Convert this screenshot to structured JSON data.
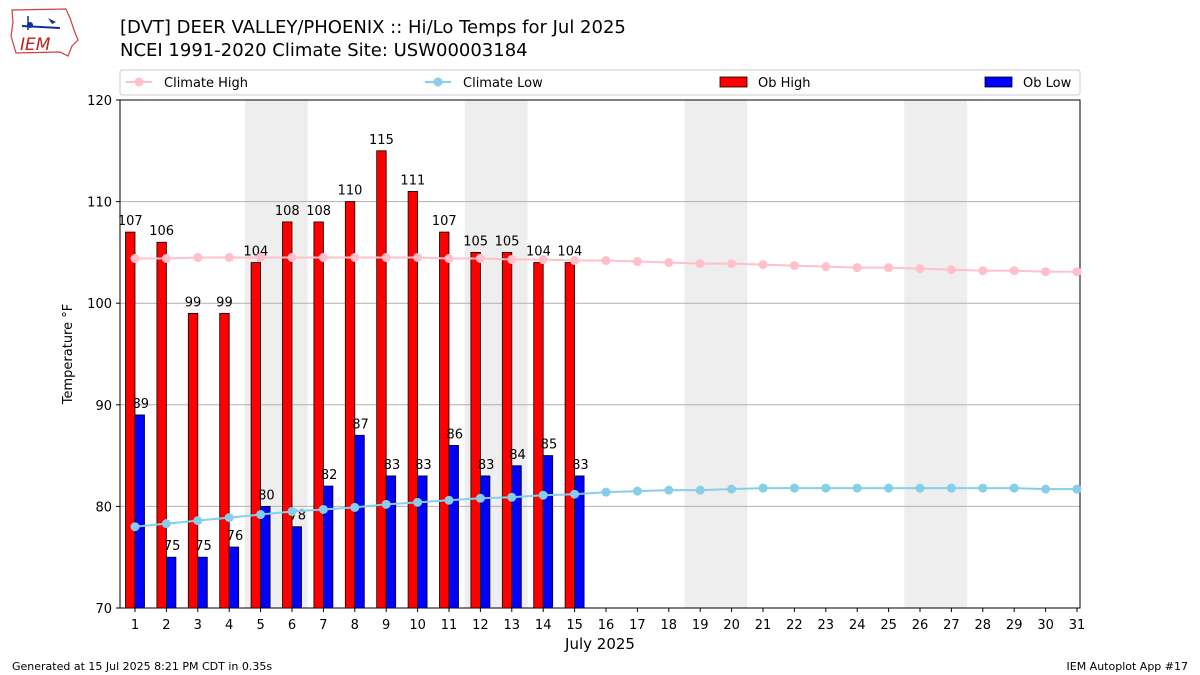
{
  "header": {
    "title": "[DVT] DEER VALLEY/PHOENIX :: Hi/Lo Temps for Jul 2025",
    "subtitle": "NCEI 1991-2020 Climate Site: USW00003184",
    "logo_text": "IEM"
  },
  "footer": {
    "left": "Generated at 15 Jul 2025 8:21 PM CDT in 0.35s",
    "right": "IEM Autoplot App #17"
  },
  "colors": {
    "climate_high": "#ffc0cb",
    "climate_low": "#87ceeb",
    "ob_high": "#ff0000",
    "ob_low": "#0000ff",
    "weekend_shade": "#eeeeee",
    "grid": "#b0b0b0"
  },
  "chart_data": {
    "type": "bar",
    "xlabel": "July 2025",
    "ylabel": "Temperature °F",
    "ylim": [
      70,
      120
    ],
    "yticks": [
      70,
      80,
      90,
      100,
      110,
      120
    ],
    "grid": "horizontal",
    "legend_placement": "top",
    "categories": [
      "1",
      "2",
      "3",
      "4",
      "5",
      "6",
      "7",
      "8",
      "9",
      "10",
      "11",
      "12",
      "13",
      "14",
      "15",
      "16",
      "17",
      "18",
      "19",
      "20",
      "21",
      "22",
      "23",
      "24",
      "25",
      "26",
      "27",
      "28",
      "29",
      "30",
      "31"
    ],
    "weekend_shading": [
      [
        5,
        6
      ],
      [
        12,
        13
      ],
      [
        19,
        20
      ],
      [
        26,
        27
      ]
    ],
    "series": [
      {
        "name": "Climate High",
        "kind": "line",
        "values": [
          104.4,
          104.4,
          104.5,
          104.5,
          104.5,
          104.5,
          104.5,
          104.5,
          104.5,
          104.5,
          104.4,
          104.4,
          104.3,
          104.3,
          104.2,
          104.2,
          104.1,
          104.0,
          103.9,
          103.9,
          103.8,
          103.7,
          103.6,
          103.5,
          103.5,
          103.4,
          103.3,
          103.2,
          103.2,
          103.1,
          103.1
        ]
      },
      {
        "name": "Climate Low",
        "kind": "line",
        "values": [
          78.0,
          78.3,
          78.6,
          78.9,
          79.2,
          79.5,
          79.7,
          79.9,
          80.2,
          80.4,
          80.6,
          80.8,
          80.9,
          81.1,
          81.2,
          81.4,
          81.5,
          81.6,
          81.6,
          81.7,
          81.8,
          81.8,
          81.8,
          81.8,
          81.8,
          81.8,
          81.8,
          81.8,
          81.8,
          81.7,
          81.7
        ]
      },
      {
        "name": "Ob High",
        "kind": "bar",
        "values": [
          107,
          106,
          99,
          99,
          104,
          108,
          108,
          110,
          115,
          111,
          107,
          105,
          105,
          104,
          104,
          null,
          null,
          null,
          null,
          null,
          null,
          null,
          null,
          null,
          null,
          null,
          null,
          null,
          null,
          null,
          null
        ]
      },
      {
        "name": "Ob Low",
        "kind": "bar",
        "values": [
          89,
          75,
          75,
          76,
          80,
          78,
          82,
          87,
          83,
          83,
          86,
          83,
          84,
          85,
          83,
          null,
          null,
          null,
          null,
          null,
          null,
          null,
          null,
          null,
          null,
          null,
          null,
          null,
          null,
          null,
          null
        ]
      }
    ]
  }
}
